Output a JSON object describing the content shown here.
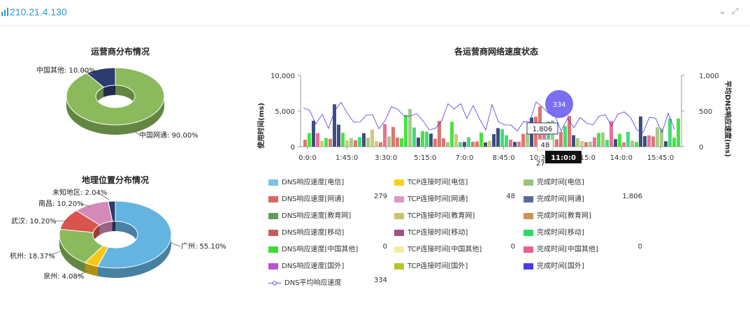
{
  "header": {
    "title": "210.21.4.130",
    "collapse_icon": "chevron-down-icon",
    "shrink_icon": "shrink-icon"
  },
  "chart_data": [
    {
      "type": "pie",
      "title": "运营商分布情况",
      "slices": [
        {
          "label": "中国网通",
          "value": 90.0,
          "text": "中国网通: 90.00%",
          "color": "#8aba5b"
        },
        {
          "label": "中国其他",
          "value": 10.0,
          "text": "中国其他: 10.00%",
          "color": "#2b3b6e"
        }
      ]
    },
    {
      "type": "pie",
      "title": "地理位置分布情况",
      "slices": [
        {
          "label": "广州",
          "value": 55.1,
          "text": "广州: 55.10%",
          "color": "#63b4e0"
        },
        {
          "label": "泉州",
          "value": 4.08,
          "text": "泉州: 4.08%",
          "color": "#f5c915"
        },
        {
          "label": "杭州",
          "value": 18.37,
          "text": "杭州: 18.37%",
          "color": "#8aba5b"
        },
        {
          "label": "武汉",
          "value": 10.2,
          "text": "武汉: 10.20%",
          "color": "#d9534f"
        },
        {
          "label": "南昌",
          "value": 10.2,
          "text": "南昌: 10.20%",
          "color": "#d38ab8"
        },
        {
          "label": "未知地区",
          "value": 2.04,
          "text": "未知地区: 2.04%",
          "color": "#2b3b6e"
        }
      ]
    },
    {
      "type": "bar",
      "title": "各运营商网络速度状态",
      "ylabel": "使用时间(ms)",
      "ylabel_right": "平均DNS响应速度(ms)",
      "ylim": [
        0,
        10000
      ],
      "ylim_right": [
        0,
        1000
      ],
      "yticks": [
        "0",
        "5,000",
        "10,000"
      ],
      "yticks_right": [
        "0",
        "500",
        "1,000"
      ],
      "xticks": [
        "0:0:0",
        "1:45:0",
        "3:30:0",
        "5:15:0",
        "7:0:0",
        "8:45:0",
        "10:30:0",
        "12:15:0",
        "14:0:0",
        "15:45:0"
      ],
      "tooltip": {
        "time": "11:0:0",
        "dns": "334",
        "total": "1,806",
        "tcp": "48",
        "other": "27"
      },
      "series": [
        {
          "name": "DNS响应速度[电信]",
          "color": "#7fc1e3",
          "value": ""
        },
        {
          "name": "TCP连接时间[电信]",
          "color": "#f7d21a",
          "value": ""
        },
        {
          "name": "完成时间[电信]",
          "color": "#9cc47c",
          "value": ""
        },
        {
          "name": "DNS响应速度[网通]",
          "color": "#d9675f",
          "value": "279"
        },
        {
          "name": "TCP连接时间[网通]",
          "color": "#d99ac5",
          "value": "48"
        },
        {
          "name": "完成时间[网通]",
          "color": "#5a6a96",
          "value": "1,806"
        },
        {
          "name": "DNS响应速度[教育网]",
          "color": "#5e9b5e",
          "value": ""
        },
        {
          "name": "TCP连接时间[教育网]",
          "color": "#c8c46a",
          "value": ""
        },
        {
          "name": "完成时间[教育网]",
          "color": "#c9935a",
          "value": ""
        },
        {
          "name": "DNS响应速度[移动]",
          "color": "#c95a5a",
          "value": ""
        },
        {
          "name": "TCP连接时间[移动]",
          "color": "#a0508a",
          "value": ""
        },
        {
          "name": "完成时间[移动]",
          "color": "#2fd86a",
          "value": ""
        },
        {
          "name": "DNS响应速度[中国其他]",
          "color": "#35e02f",
          "value": "0"
        },
        {
          "name": "TCP连接时间[中国其他]",
          "color": "#f5eba5",
          "value": "0"
        },
        {
          "name": "完成时间[中国其他]",
          "color": "#e8608e",
          "value": "0"
        },
        {
          "name": "DNS响应速度[国外]",
          "color": "#c24fd8",
          "value": ""
        },
        {
          "name": "TCP连接时间[国外]",
          "color": "#b5c42a",
          "value": ""
        },
        {
          "name": "完成时间[国外]",
          "color": "#4a3ae8",
          "value": ""
        },
        {
          "name": "DNS平均响应速度",
          "color": "#5a4ad8",
          "value": "334",
          "line": true
        }
      ]
    }
  ]
}
